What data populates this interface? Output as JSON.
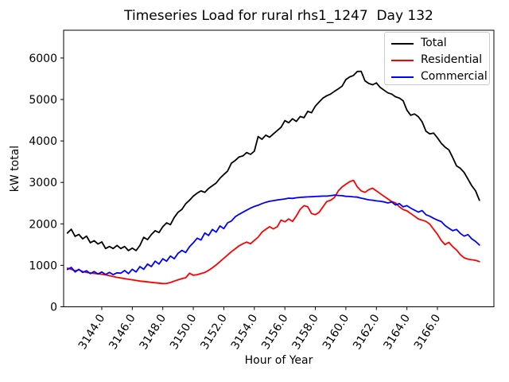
{
  "chart_data": {
    "type": "line",
    "title": "Timeseries Load for rural rhs1_1247  Day 132",
    "xlabel": "Hour of Year",
    "ylabel": "kW total",
    "xlim": [
      3141.5,
      3169.7
    ],
    "ylim": [
      0,
      6670
    ],
    "grid": false,
    "legend": {
      "position": "upper right",
      "entries": [
        "Total",
        "Residential",
        "Commercial"
      ]
    },
    "xticks": {
      "values": [
        3144,
        3146,
        3148,
        3150,
        3152,
        3154,
        3156,
        3158,
        3160,
        3162,
        3164,
        3166
      ],
      "labels": [
        "3144.0",
        "3146.0",
        "3148.0",
        "3150.0",
        "3152.0",
        "3154.0",
        "3156.0",
        "3158.0",
        "3160.0",
        "3162.0",
        "3164.0",
        "3166.0"
      ]
    },
    "yticks": {
      "values": [
        0,
        1000,
        2000,
        3000,
        4000,
        5000,
        6000
      ],
      "labels": [
        "0",
        "1000",
        "2000",
        "3000",
        "4000",
        "5000",
        "6000"
      ]
    },
    "x_start": 3141.75,
    "x_step": 0.25,
    "series": [
      {
        "name": "Total",
        "color": "#000000",
        "values": [
          1780,
          1870,
          1700,
          1745,
          1640,
          1705,
          1545,
          1595,
          1515,
          1565,
          1405,
          1455,
          1405,
          1480,
          1405,
          1455,
          1355,
          1415,
          1355,
          1480,
          1675,
          1620,
          1740,
          1835,
          1790,
          1930,
          2025,
          1980,
          2155,
          2280,
          2350,
          2485,
          2570,
          2670,
          2740,
          2795,
          2760,
          2855,
          2920,
          2985,
          3100,
          3190,
          3275,
          3465,
          3530,
          3615,
          3640,
          3720,
          3675,
          3755,
          4105,
          4040,
          4140,
          4090,
          4170,
          4250,
          4330,
          4490,
          4440,
          4535,
          4470,
          4590,
          4560,
          4715,
          4680,
          4840,
          4940,
          5035,
          5090,
          5130,
          5195,
          5255,
          5320,
          5480,
          5545,
          5580,
          5675,
          5680,
          5450,
          5385,
          5355,
          5400,
          5290,
          5225,
          5160,
          5130,
          5065,
          5035,
          4970,
          4745,
          4620,
          4650,
          4585,
          4460,
          4235,
          4170,
          4190,
          4075,
          3945,
          3850,
          3785,
          3600,
          3400,
          3340,
          3240,
          3080,
          2920,
          2795,
          2570
        ]
      },
      {
        "name": "Residential",
        "color": "#ff0000",
        "values": [
          930,
          905,
          870,
          890,
          850,
          830,
          815,
          805,
          795,
          785,
          770,
          750,
          730,
          710,
          695,
          680,
          665,
          650,
          635,
          620,
          610,
          600,
          590,
          580,
          570,
          560,
          565,
          585,
          620,
          650,
          680,
          700,
          810,
          760,
          775,
          800,
          830,
          880,
          940,
          1010,
          1090,
          1170,
          1250,
          1330,
          1400,
          1470,
          1520,
          1560,
          1520,
          1600,
          1680,
          1800,
          1870,
          1930,
          1880,
          1930,
          2090,
          2050,
          2120,
          2060,
          2190,
          2350,
          2440,
          2410,
          2250,
          2220,
          2280,
          2410,
          2540,
          2570,
          2635,
          2795,
          2890,
          2955,
          3020,
          3050,
          2890,
          2795,
          2760,
          2825,
          2860,
          2795,
          2730,
          2665,
          2600,
          2540,
          2505,
          2410,
          2345,
          2315,
          2250,
          2185,
          2120,
          2090,
          2060,
          1995,
          1870,
          1750,
          1600,
          1500,
          1555,
          1450,
          1370,
          1260,
          1180,
          1150,
          1135,
          1120,
          1090
        ]
      },
      {
        "name": "Commercial",
        "color": "#0000ff",
        "values": [
          900,
          950,
          840,
          905,
          830,
          870,
          800,
          850,
          790,
          840,
          780,
          830,
          775,
          820,
          810,
          875,
          800,
          905,
          840,
          970,
          905,
          1030,
          970,
          1100,
          1030,
          1160,
          1100,
          1225,
          1160,
          1290,
          1360,
          1310,
          1450,
          1545,
          1655,
          1610,
          1780,
          1720,
          1865,
          1800,
          1950,
          1885,
          2025,
          2070,
          2170,
          2230,
          2280,
          2330,
          2380,
          2420,
          2450,
          2490,
          2520,
          2545,
          2560,
          2575,
          2590,
          2600,
          2620,
          2615,
          2630,
          2640,
          2645,
          2650,
          2655,
          2660,
          2665,
          2670,
          2670,
          2680,
          2695,
          2685,
          2680,
          2665,
          2660,
          2650,
          2645,
          2620,
          2600,
          2580,
          2570,
          2555,
          2545,
          2530,
          2505,
          2530,
          2455,
          2490,
          2410,
          2440,
          2380,
          2330,
          2285,
          2320,
          2220,
          2185,
          2135,
          2090,
          2055,
          1960,
          1895,
          1835,
          1865,
          1770,
          1705,
          1740,
          1640,
          1575,
          1490
        ]
      }
    ]
  }
}
